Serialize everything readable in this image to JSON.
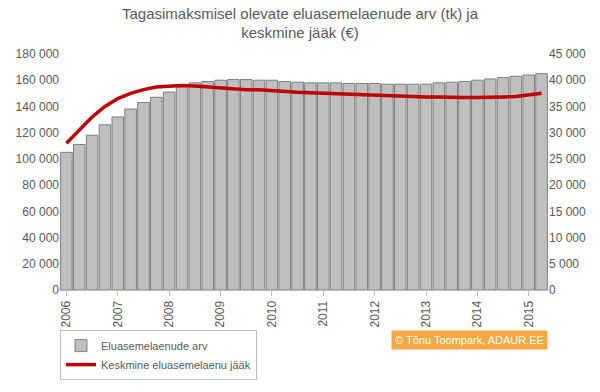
{
  "chart_data": {
    "type": "bar",
    "title": [
      "Tagasimaksmisel olevate eluasemelaenude arv (tk) ja",
      "keskmine jääk (€)"
    ],
    "categories": [
      "2006",
      null,
      null,
      null,
      "2007",
      null,
      null,
      null,
      "2008",
      null,
      null,
      null,
      "2009",
      null,
      null,
      null,
      "2010",
      null,
      null,
      null,
      "2011",
      null,
      null,
      null,
      "2012",
      null,
      null,
      null,
      "2013",
      null,
      null,
      null,
      "2014",
      null,
      null,
      null,
      "2015",
      null
    ],
    "series": [
      {
        "name": "Eluasemelaenude arv",
        "type": "bar",
        "color": "#bfbfbf",
        "values": [
          105000,
          111000,
          118000,
          126000,
          132000,
          138000,
          143000,
          147000,
          151000,
          155000,
          158000,
          159000,
          160000,
          160500,
          160500,
          160000,
          160000,
          159000,
          158500,
          158000,
          158000,
          158000,
          157500,
          157500,
          157500,
          157000,
          157000,
          157000,
          157000,
          158000,
          158500,
          159000,
          160000,
          161000,
          162000,
          163000,
          164000,
          165000
        ]
      },
      {
        "name": "Keskmine eluasemelaenu jääk",
        "type": "line",
        "color": "#c00000",
        "axis": "y2",
        "values": [
          28000,
          30500,
          33000,
          35000,
          36500,
          37500,
          38200,
          38700,
          38900,
          39000,
          38900,
          38700,
          38500,
          38300,
          38200,
          38200,
          38000,
          37900,
          37700,
          37600,
          37500,
          37400,
          37400,
          37300,
          37100,
          37100,
          37000,
          36900,
          36800,
          36800,
          36700,
          36700,
          36700,
          36700,
          36800,
          36900,
          37200,
          37500
        ]
      }
    ],
    "ylim": [
      0,
      180000
    ],
    "yticks": [
      0,
      {
        "value": 20000,
        "label": "20 000"
      },
      {
        "value": 40000,
        "label": "40 000"
      },
      {
        "value": 60000,
        "label": "60 000"
      },
      {
        "value": 80000,
        "label": "80 000"
      },
      {
        "value": 100000,
        "label": "100 000"
      },
      {
        "value": 120000,
        "label": "120 000"
      },
      {
        "value": 140000,
        "label": "140 000"
      },
      {
        "value": 160000,
        "label": "160 000"
      },
      {
        "value": 180000,
        "label": "180 000"
      }
    ],
    "y2lim": [
      0,
      45000
    ],
    "y2ticks": [
      0,
      {
        "value": 5000,
        "label": "5 000"
      },
      {
        "value": 10000,
        "label": "10 000"
      },
      {
        "value": 15000,
        "label": "15 000"
      },
      {
        "value": 20000,
        "label": "20 000"
      },
      {
        "value": 25000,
        "label": "25 000"
      },
      {
        "value": 30000,
        "label": "30 000"
      },
      {
        "value": 35000,
        "label": "35 000"
      },
      {
        "value": 40000,
        "label": "40 000"
      },
      {
        "value": 45000,
        "label": "45 000"
      }
    ],
    "grid": false,
    "legend": "bottom left",
    "annotations": [
      "© Tõnu Toompark, ADAUR.EE"
    ]
  }
}
